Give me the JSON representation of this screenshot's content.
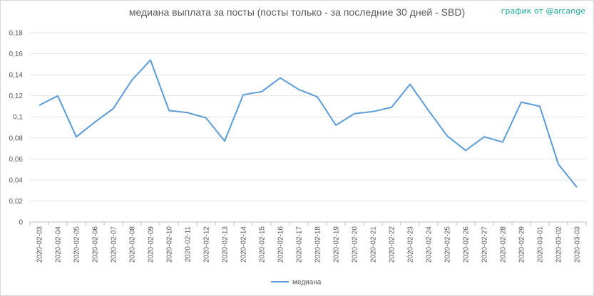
{
  "chart_data": {
    "type": "line",
    "title": "медиана выплата за посты  (посты только - за последние 30 дней - SBD)",
    "credit": "график от @arcange",
    "xlabel": "",
    "ylabel": "",
    "ylim": [
      0,
      0.18
    ],
    "yticks": [
      "0",
      "0,02",
      "0,04",
      "0,06",
      "0,08",
      "0,1",
      "0,12",
      "0,14",
      "0,16",
      "0,18"
    ],
    "categories": [
      "2020-02-03",
      "2020-02-04",
      "2020-02-05",
      "2020-02-06",
      "2020-02-07",
      "2020-02-08",
      "2020-02-09",
      "2020-02-10",
      "2020-02-11",
      "2020-02-12",
      "2020-02-13",
      "2020-02-14",
      "2020-02-15",
      "2020-02-16",
      "2020-02-17",
      "2020-02-18",
      "2020-02-19",
      "2020-02-20",
      "2020-02-21",
      "2020-02-22",
      "2020-02-23",
      "2020-02-24",
      "2020-02-25",
      "2020-02-26",
      "2020-02-27",
      "2020-02-28",
      "2020-02-29",
      "2020-03-01",
      "2020-03-02",
      "2020-03-03"
    ],
    "series": [
      {
        "name": "медиана",
        "color": "#5b9bd5",
        "values": [
          0.111,
          0.12,
          0.081,
          0.095,
          0.108,
          0.135,
          0.154,
          0.106,
          0.104,
          0.099,
          0.077,
          0.121,
          0.124,
          0.137,
          0.126,
          0.119,
          0.092,
          0.103,
          0.105,
          0.109,
          0.131,
          0.106,
          0.082,
          0.068,
          0.081,
          0.076,
          0.114,
          0.11,
          0.055,
          0.033
        ]
      }
    ],
    "grid": true,
    "legend": "bottom-center"
  }
}
